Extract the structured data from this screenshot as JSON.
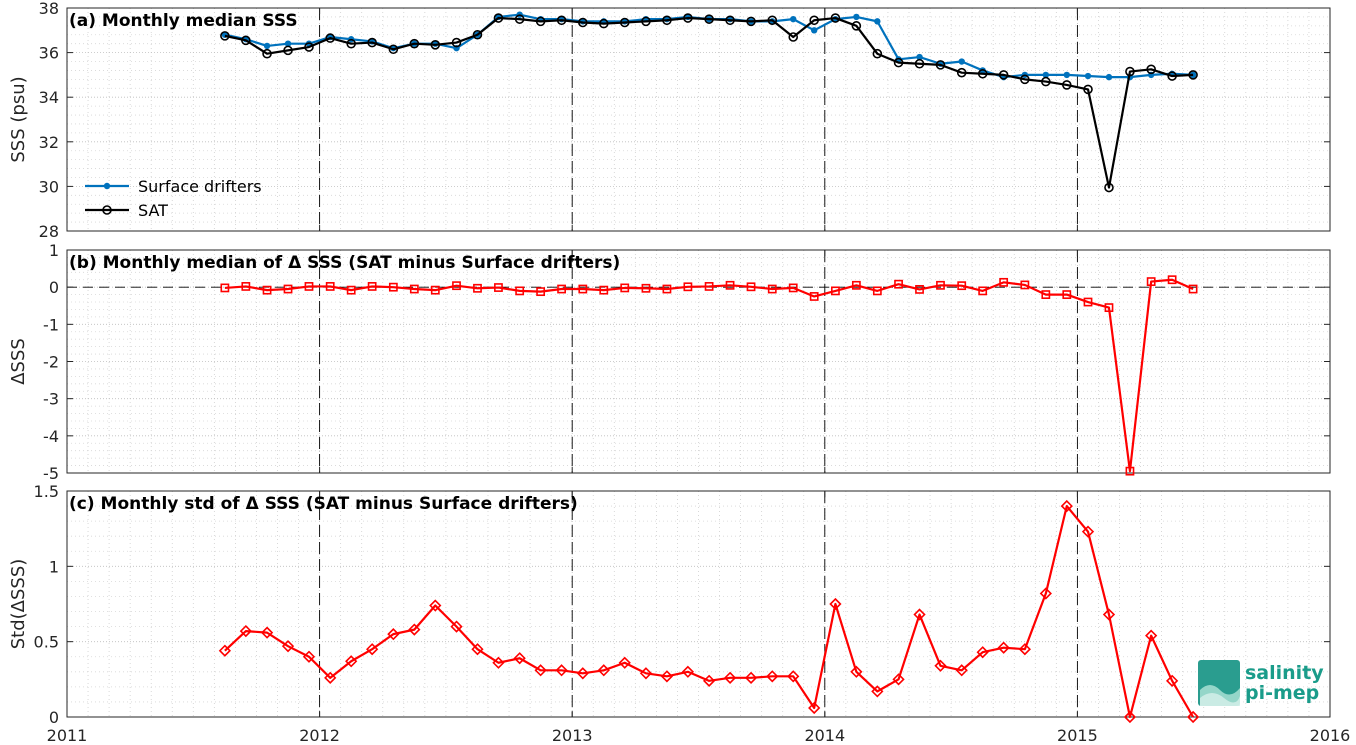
{
  "chart_data": [
    {
      "type": "line",
      "title": "(a) Monthly median SSS",
      "ylabel": "SSS (psu)",
      "xlim": [
        2011,
        2016
      ],
      "ylim": [
        28,
        38
      ],
      "yticks": [
        28,
        30,
        32,
        34,
        36,
        38
      ],
      "xticks": [
        2011,
        2012,
        2013,
        2014,
        2015,
        2016
      ],
      "grid": true,
      "legend_location": "bottom-left",
      "year_lines": [
        2012,
        2013,
        2014,
        2015
      ],
      "x": [
        2011.625,
        2011.708,
        2011.792,
        2011.875,
        2011.958,
        2012.042,
        2012.125,
        2012.208,
        2012.292,
        2012.375,
        2012.458,
        2012.542,
        2012.625,
        2012.708,
        2012.792,
        2012.875,
        2012.958,
        2013.042,
        2013.125,
        2013.208,
        2013.292,
        2013.375,
        2013.458,
        2013.542,
        2013.625,
        2013.708,
        2013.792,
        2013.875,
        2013.958,
        2014.042,
        2014.125,
        2014.208,
        2014.292,
        2014.375,
        2014.458,
        2014.542,
        2014.625,
        2014.708,
        2014.792,
        2014.875,
        2014.958,
        2015.042,
        2015.125,
        2015.208,
        2015.292,
        2015.375,
        2015.458
      ],
      "series": [
        {
          "name": "Surface drifters",
          "color": "#0072BD",
          "marker": "dot",
          "values": [
            36.8,
            36.6,
            36.3,
            36.4,
            36.4,
            36.7,
            36.6,
            36.5,
            36.2,
            36.4,
            36.4,
            36.2,
            36.8,
            37.6,
            37.7,
            37.5,
            37.5,
            37.4,
            37.4,
            37.4,
            37.5,
            37.5,
            37.6,
            37.5,
            37.5,
            37.4,
            37.4,
            37.5,
            37.0,
            37.5,
            37.6,
            37.4,
            35.7,
            35.8,
            35.5,
            35.6,
            35.2,
            34.9,
            35.0,
            35.0,
            35.0,
            34.95,
            34.9,
            34.9,
            35.0,
            35.05,
            35.0
          ]
        },
        {
          "name": "SAT",
          "color": "#000000",
          "marker": "circle",
          "values": [
            36.75,
            36.55,
            35.95,
            36.1,
            36.25,
            36.65,
            36.4,
            36.45,
            36.15,
            36.4,
            36.35,
            36.45,
            36.8,
            37.55,
            37.5,
            37.4,
            37.45,
            37.35,
            37.3,
            37.35,
            37.4,
            37.45,
            37.55,
            37.5,
            37.45,
            37.4,
            37.45,
            36.7,
            37.45,
            37.55,
            37.2,
            35.95,
            35.55,
            35.5,
            35.45,
            35.1,
            35.05,
            35.0,
            34.8,
            34.7,
            34.55,
            34.35,
            29.95,
            35.15,
            35.25,
            34.95,
            35.0
          ]
        }
      ]
    },
    {
      "type": "line",
      "title": "(b) Monthly median of Δ SSS (SAT minus Surface drifters)",
      "ylabel": "ΔSSS",
      "xlim": [
        2011,
        2016
      ],
      "ylim": [
        -5,
        1
      ],
      "yticks": [
        -5,
        -4,
        -3,
        -2,
        -1,
        0,
        1
      ],
      "reference_line": 0,
      "grid": true,
      "series": [
        {
          "name": "",
          "color": "#ff0000",
          "marker": "square",
          "values": [
            -0.02,
            0.02,
            -0.08,
            -0.05,
            0.02,
            0.02,
            -0.08,
            0.02,
            0.0,
            -0.05,
            -0.08,
            0.04,
            -0.03,
            -0.01,
            -0.1,
            -0.12,
            -0.05,
            -0.05,
            -0.08,
            -0.02,
            -0.03,
            -0.05,
            0.01,
            0.02,
            0.05,
            0.01,
            -0.05,
            -0.02,
            -0.25,
            -0.1,
            0.05,
            -0.1,
            0.08,
            -0.06,
            0.05,
            0.04,
            -0.1,
            0.13,
            0.06,
            -0.2,
            -0.2,
            -0.4,
            -0.55,
            -4.95,
            0.15,
            0.2,
            -0.05
          ]
        }
      ]
    },
    {
      "type": "line",
      "title": "(c) Monthly std of Δ SSS (SAT minus Surface drifters)",
      "ylabel": "Std(ΔSSS)",
      "xlim": [
        2011,
        2016
      ],
      "ylim": [
        0,
        1.5
      ],
      "yticks": [
        0,
        0.5,
        1,
        1.5
      ],
      "grid": true,
      "series": [
        {
          "name": "",
          "color": "#ff0000",
          "marker": "diamond",
          "values": [
            0.44,
            0.57,
            0.56,
            0.47,
            0.4,
            0.26,
            0.37,
            0.45,
            0.55,
            0.58,
            0.74,
            0.6,
            0.45,
            0.36,
            0.39,
            0.31,
            0.31,
            0.29,
            0.31,
            0.36,
            0.29,
            0.27,
            0.3,
            0.24,
            0.26,
            0.26,
            0.27,
            0.27,
            0.06,
            0.75,
            0.3,
            0.17,
            0.25,
            0.68,
            0.34,
            0.31,
            0.43,
            0.46,
            0.45,
            0.82,
            1.4,
            1.23,
            0.68,
            0.0,
            0.54,
            0.24,
            0.0
          ]
        }
      ]
    }
  ],
  "logo": {
    "line1": "salinity",
    "line2": "pi-mep"
  }
}
